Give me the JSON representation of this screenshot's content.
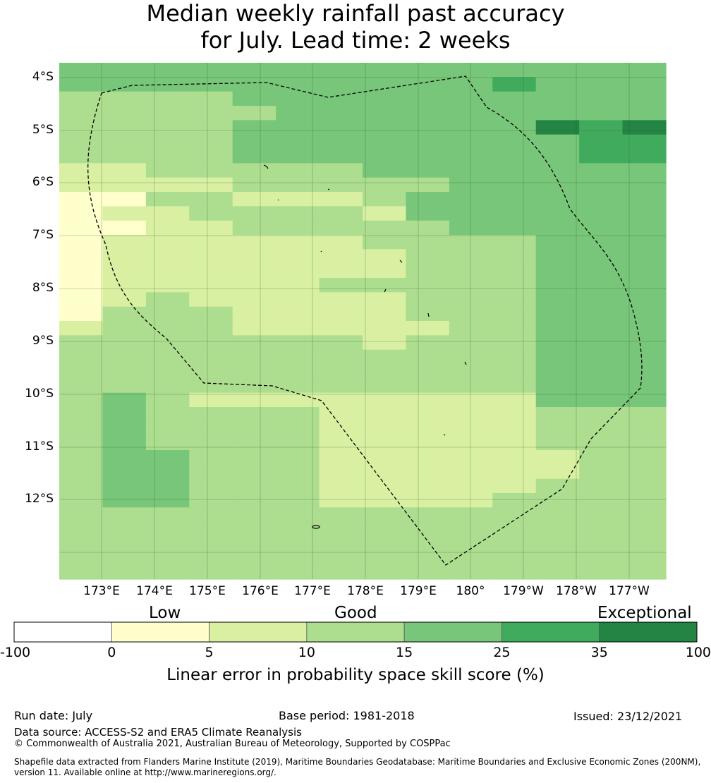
{
  "title": {
    "line1": "Median weekly rainfall past accuracy",
    "line2": "for July. Lead time: 2 weeks"
  },
  "map": {
    "lat_labels": [
      "4°S",
      "5°S",
      "6°S",
      "7°S",
      "8°S",
      "9°S",
      "10°S",
      "11°S",
      "12°S"
    ],
    "lon_labels": [
      "173°E",
      "174°E",
      "175°E",
      "176°E",
      "177°E",
      "178°E",
      "179°E",
      "180°",
      "179°W",
      "178°W",
      "177°W"
    ],
    "grid_skill_classes": [
      "44444444444444",
      "44444444445444",
      "33334444444444",
      "33333444444444",
      "33334444444656",
      "33334444444455",
      "33334444444455",
      "22333334444444",
      "22223333344444",
      "11332223444444",
      "12233332444444",
      "11223333344444",
      "12222223333444",
      "12222222333444",
      "12222222333444",
      "12222233333444",
      "12322222333444",
      "13332222333444",
      "23332222233444",
      "33333332333444",
      "33333333333444",
      "33333333333444",
      "33333333333444",
      "34322222222444",
      "34333322222333",
      "34333322222333",
      "34333322222333",
      "34433322222233",
      "34433322222233",
      "34433322222333",
      "34433322223333",
      "33333333333333",
      "33333333333333",
      "33333333333333",
      "33333333333333",
      "33333333333333"
    ]
  },
  "colorbar": {
    "category_labels": [
      "Low",
      "Good",
      "Exceptional"
    ],
    "ticks": [
      "-100",
      "0",
      "5",
      "10",
      "15",
      "25",
      "35",
      "100"
    ],
    "colors": [
      "#ffffff",
      "#ffffcc",
      "#d9f0a3",
      "#addd8e",
      "#78c679",
      "#41ab5d",
      "#238443"
    ],
    "title": "Linear error in probability space skill score (%)"
  },
  "footer": {
    "run_date": "Run date: July",
    "base_period": "Base period: 1981-2018",
    "issued": "Issued: 23/12/2021",
    "data_source": "Data source: ACCESS-S2 and ERA5 Climate Reanalysis",
    "copyright": "© Commonwealth of Australia 2021, Australian Bureau of Meteorology, Supported by COSPPac",
    "shapefile_line1": "Shapefile data extracted from Flanders Marine Institute (2019), Maritime Boundaries Geodatabase: Maritime Boundaries and Exclusive Economic Zones (200NM),",
    "shapefile_line2": "version 11. Available online at http://www.marineregions.org/."
  }
}
